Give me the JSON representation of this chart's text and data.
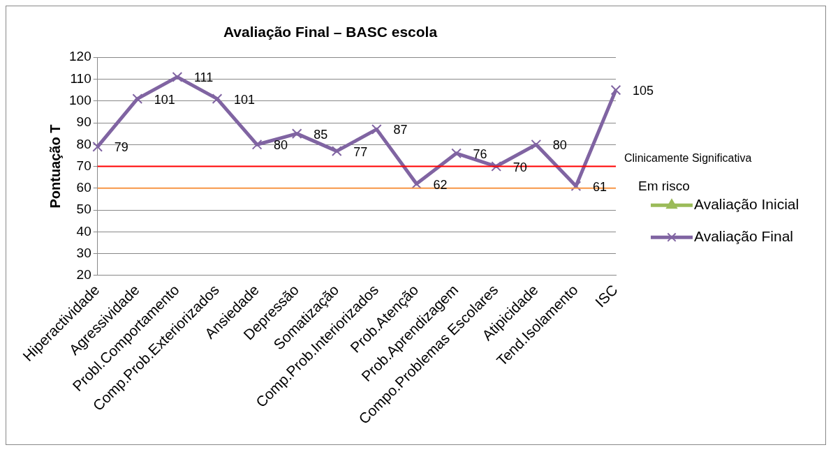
{
  "chart_data": {
    "type": "line",
    "title": "Avaliação Final – BASC escola",
    "ylabel": "Pontuação T",
    "categories": [
      "Hiperactividade",
      "Agressividade",
      "Probl.Comportamento",
      "Comp.Prob.Exteriorizados",
      "Ansiedade",
      "Depressão",
      "Somatização",
      "Comp.Prob.Interiorizados",
      "Prob.Atenção",
      "Prob.Aprendizagem",
      "Compo.Problemas Escolares",
      "Atipicidade",
      "Tend.Isolamento",
      "ISC"
    ],
    "series": [
      {
        "name": "Avaliação Inicial",
        "color": "#9bbb59",
        "marker": "triangle",
        "values": [
          null,
          null,
          null,
          null,
          null,
          null,
          null,
          null,
          null,
          null,
          null,
          null,
          null,
          null
        ]
      },
      {
        "name": "Avaliação Final",
        "color": "#8064a2",
        "marker": "cross",
        "values": [
          79,
          101,
          111,
          101,
          80,
          85,
          77,
          87,
          62,
          76,
          70,
          80,
          61,
          105
        ]
      }
    ],
    "ylim": [
      20,
      120
    ],
    "yticks": [
      20,
      30,
      40,
      50,
      60,
      70,
      80,
      90,
      100,
      110,
      120
    ],
    "grid": "y",
    "legend": "right",
    "data_labels": true,
    "ref_lines": [
      {
        "axis": "y",
        "value": 70,
        "label": "Clinicamente Significativa",
        "color": "#ff0000"
      },
      {
        "axis": "y",
        "value": 60,
        "label": "Em risco",
        "color": "#f79646"
      }
    ]
  }
}
